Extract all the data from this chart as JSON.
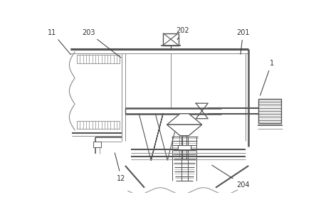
{
  "bg_color": "#ffffff",
  "lc": "#888888",
  "dc": "#555555",
  "figsize": [
    4.44,
    3.05
  ],
  "dpi": 100,
  "label_fs": 7.0,
  "label_color": "#333333"
}
